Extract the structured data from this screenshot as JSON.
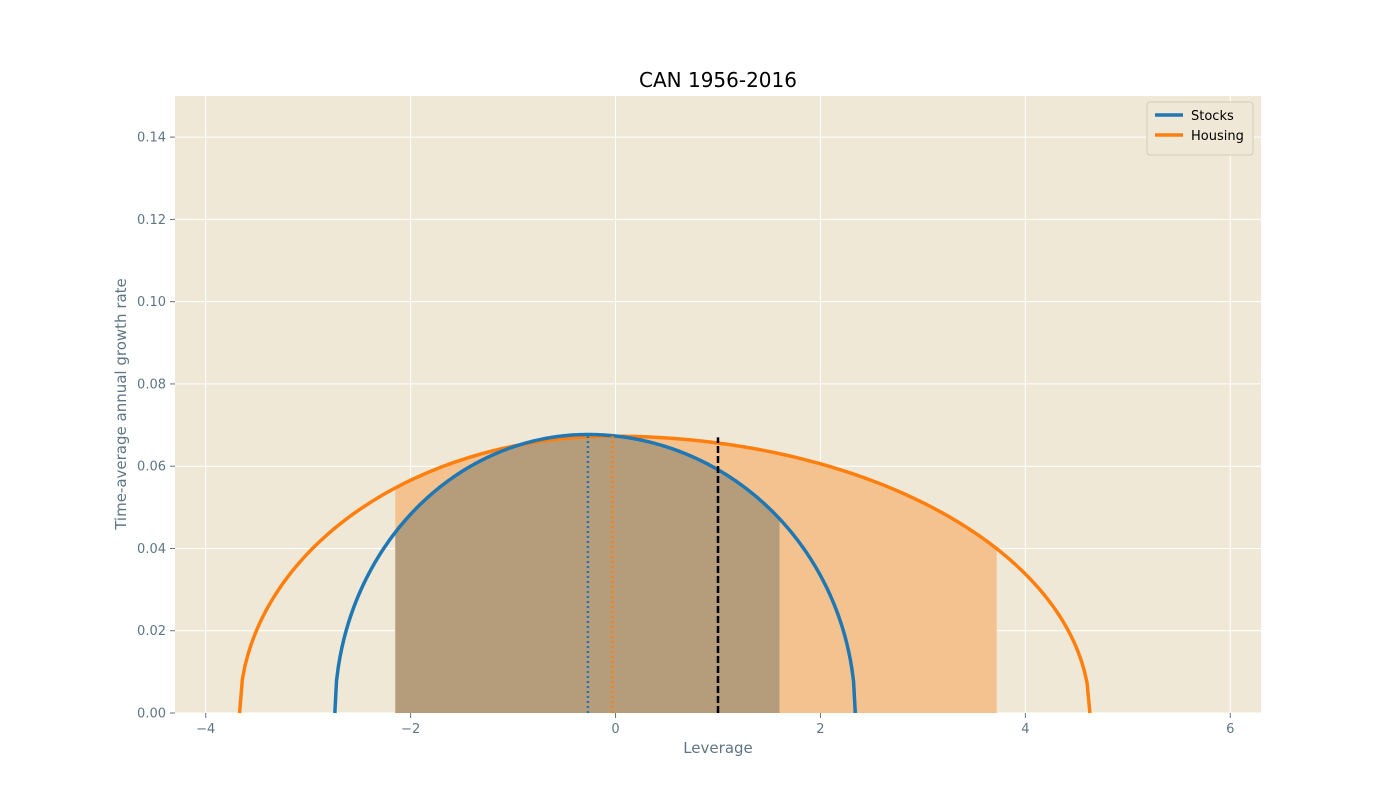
{
  "chart_data": {
    "type": "line",
    "title": "CAN 1956-2016",
    "xlabel": "Leverage",
    "ylabel": "Time-average annual growth rate",
    "xlim": [
      -4.3,
      6.3
    ],
    "ylim": [
      0.0,
      0.15
    ],
    "xticks": [
      -4,
      -2,
      0,
      2,
      4,
      6
    ],
    "xtick_labels": [
      "−4",
      "−2",
      "0",
      "2",
      "4",
      "6"
    ],
    "yticks": [
      0.0,
      0.02,
      0.04,
      0.06,
      0.08,
      0.1,
      0.12,
      0.14
    ],
    "ytick_labels": [
      "0.00",
      "0.02",
      "0.04",
      "0.06",
      "0.08",
      "0.10",
      "0.12",
      "0.14"
    ],
    "grid": true,
    "legend_position": "top-right",
    "background_color": "#efe8d6",
    "series": [
      {
        "name": "Stocks",
        "color": "#1f77b4",
        "fill_color": "#b59d7b",
        "peak_leverage": -0.27,
        "peak_growth": 0.0677,
        "zero_crossings": [
          -2.74,
          2.34
        ],
        "shaded_range": [
          -2.15,
          1.6
        ],
        "x": [
          -2.74,
          -2.5,
          -2.0,
          -1.5,
          -1.0,
          -0.5,
          -0.27,
          0.0,
          0.5,
          1.0,
          1.5,
          2.0,
          2.34
        ],
        "y": [
          0.0,
          0.0122,
          0.0373,
          0.0544,
          0.0646,
          0.0676,
          0.0677,
          0.0668,
          0.0615,
          0.0524,
          0.0384,
          0.0186,
          0.0
        ]
      },
      {
        "name": "Housing",
        "color": "#ff7f0e",
        "fill_color": "#f4c28f",
        "peak_leverage": -0.03,
        "peak_growth": 0.0673,
        "zero_crossings": [
          -3.67,
          4.63
        ],
        "shaded_range": [
          -2.15,
          3.72
        ],
        "x": [
          -3.67,
          -3.5,
          -3.0,
          -2.5,
          -2.0,
          -1.5,
          -1.0,
          -0.5,
          -0.03,
          0.5,
          1.0,
          1.5,
          2.0,
          2.5,
          3.0,
          3.5,
          4.0,
          4.5,
          4.63
        ],
        "y": [
          0.0,
          0.0141,
          0.036,
          0.0478,
          0.0556,
          0.0611,
          0.0648,
          0.0667,
          0.0673,
          0.0664,
          0.0645,
          0.0614,
          0.0564,
          0.0503,
          0.0423,
          0.0323,
          0.0194,
          0.0048,
          0.0
        ]
      }
    ],
    "reference_lines": [
      {
        "type": "vertical",
        "x": 1.0,
        "y_max": 0.067,
        "style": "dashed",
        "color": "#000000"
      },
      {
        "type": "vertical",
        "x": -0.27,
        "y_max": 0.0677,
        "style": "dotted",
        "color": "#1f77b4"
      },
      {
        "type": "vertical",
        "x": -0.03,
        "y_max": 0.0673,
        "style": "dotted",
        "color": "#ff7f0e"
      }
    ]
  }
}
